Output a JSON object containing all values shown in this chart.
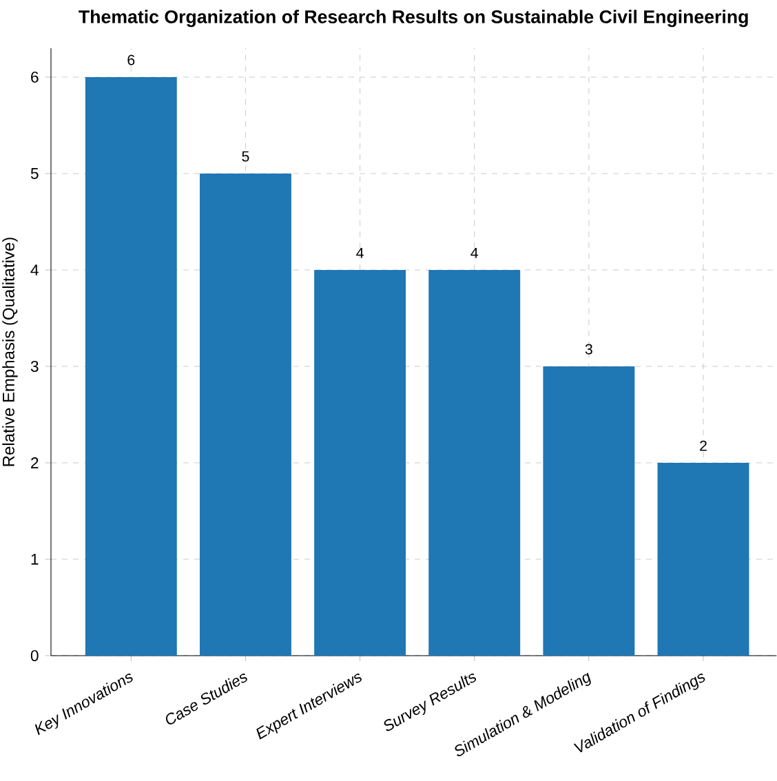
{
  "chart_data": {
    "type": "bar",
    "title": "Thematic Organization of Research Results on Sustainable Civil Engineering",
    "ylabel": "Relative Emphasis (Qualitative)",
    "categories": [
      "Key Innovations",
      "Case Studies",
      "Expert Interviews",
      "Survey Results",
      "Simulation & Modeling",
      "Validation of Findings"
    ],
    "values": [
      6,
      5,
      4,
      4,
      3,
      2
    ],
    "color": "#1f77b4",
    "ylim": [
      0,
      6.3
    ],
    "yticks": [
      0,
      1,
      2,
      3,
      4,
      5,
      6
    ],
    "grid": true,
    "data_labels": true
  }
}
